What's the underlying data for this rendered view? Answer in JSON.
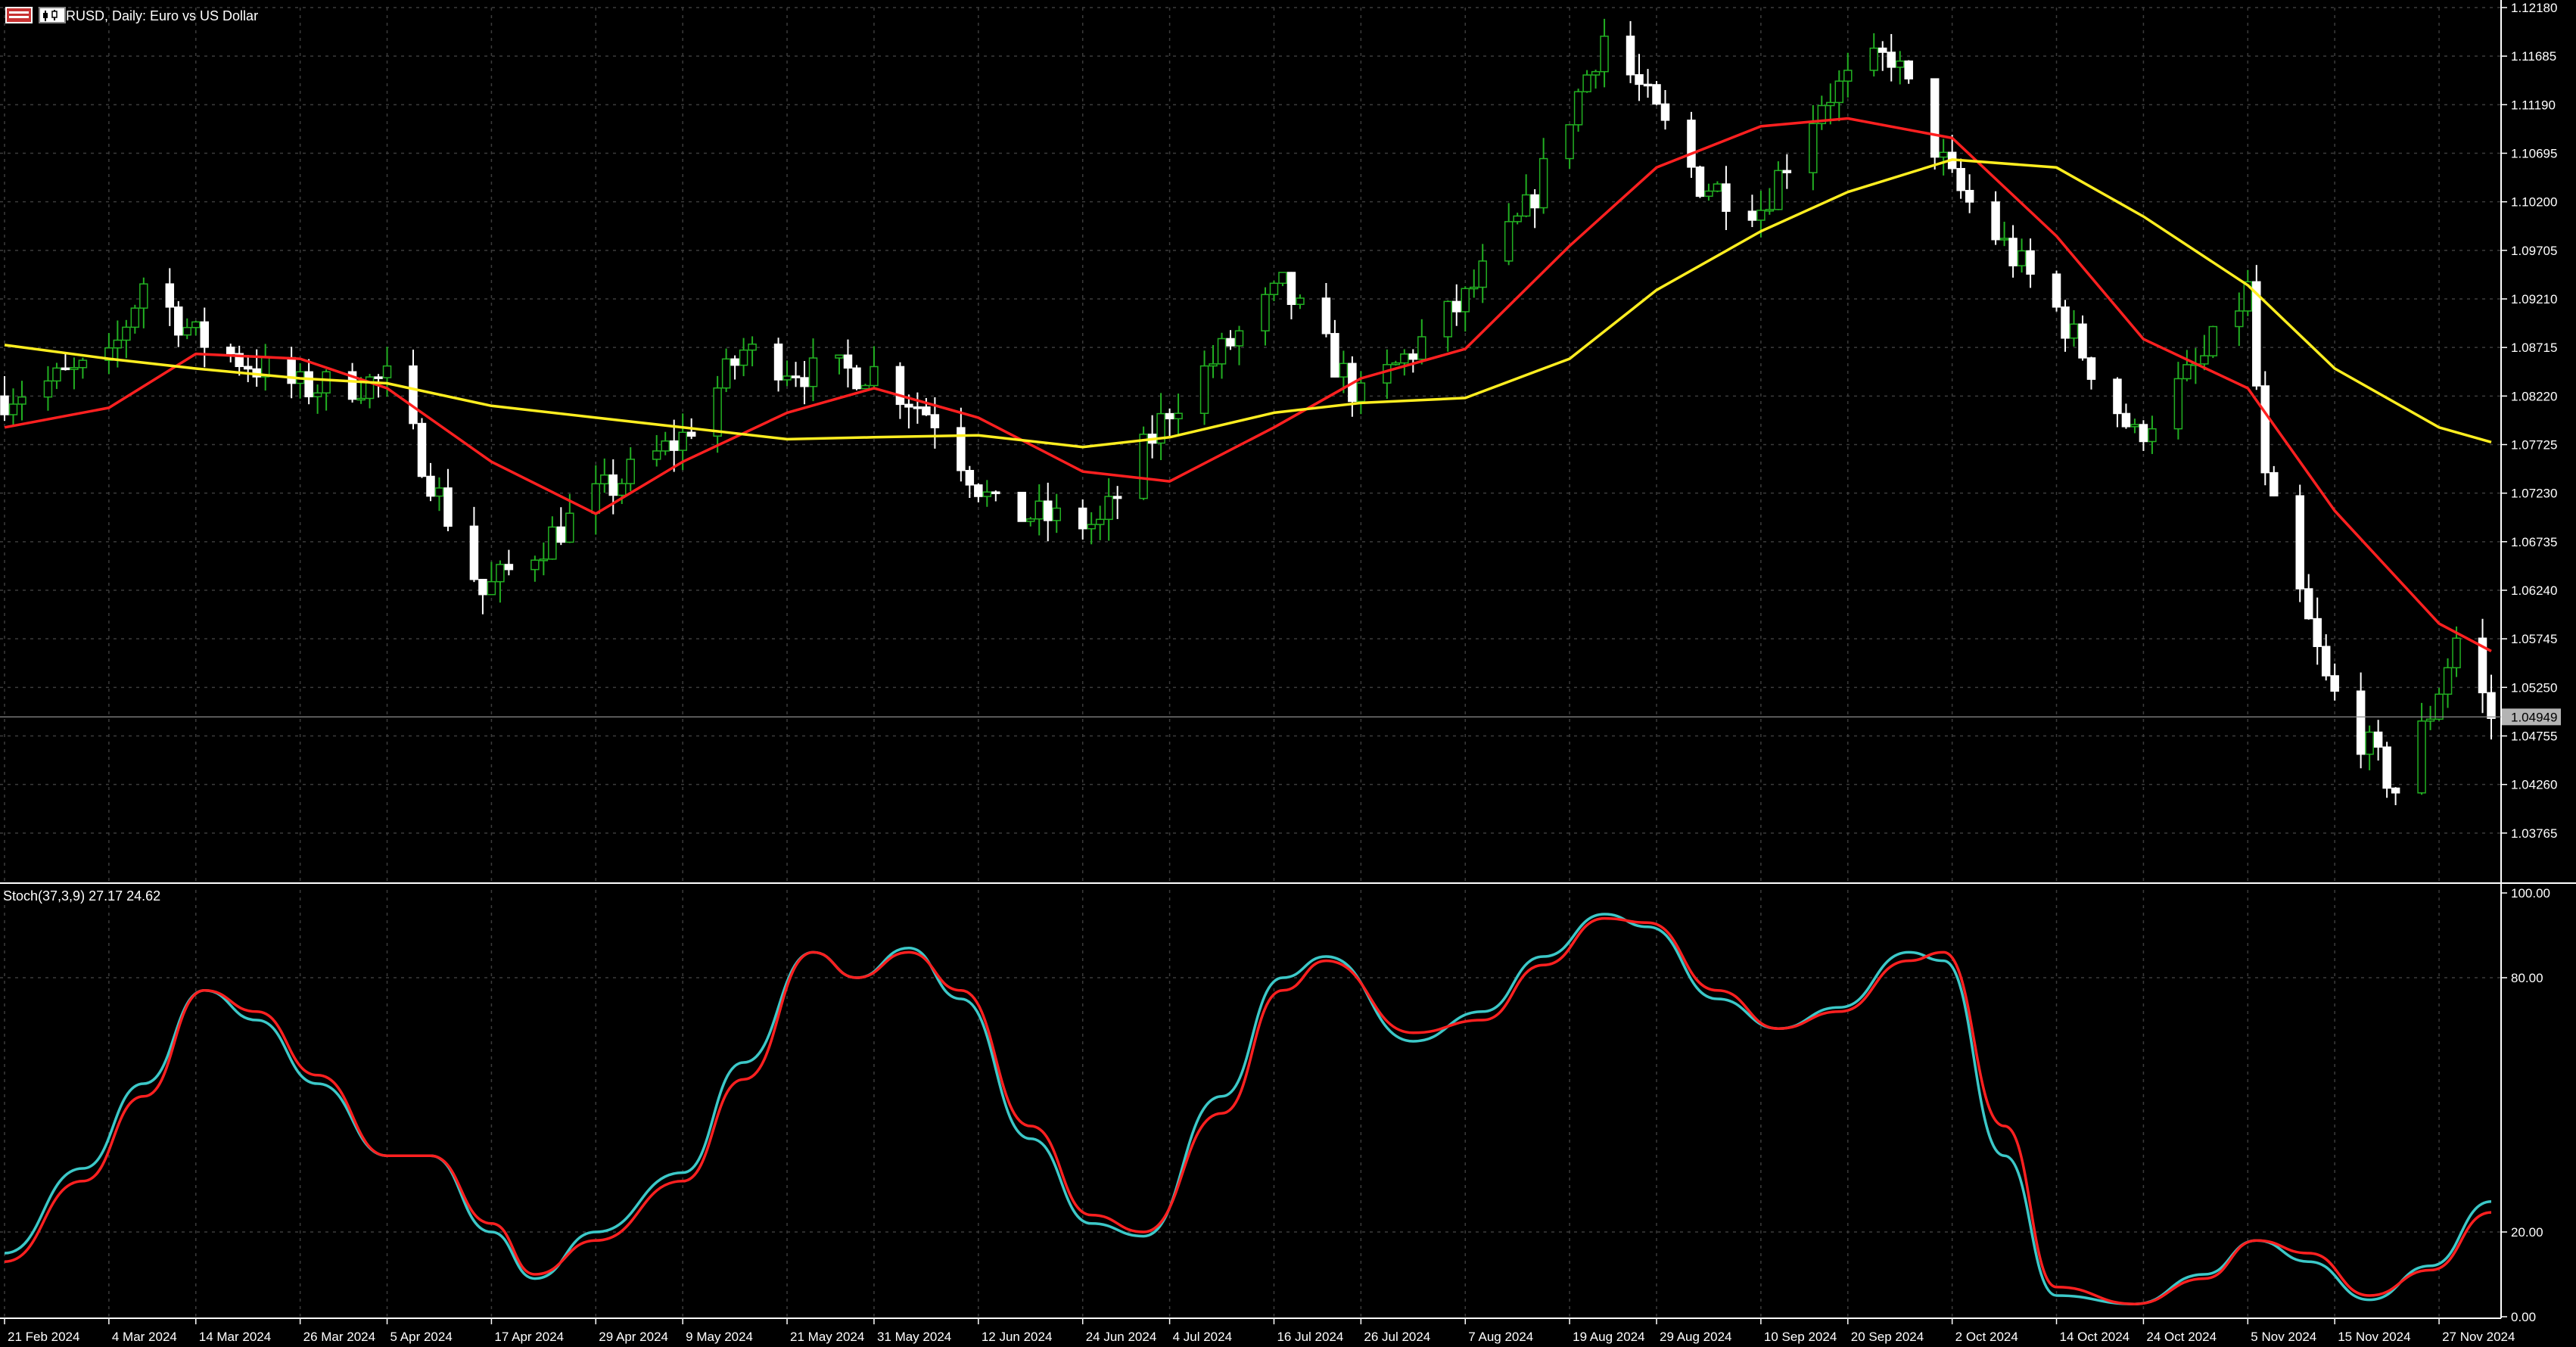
{
  "header": {
    "symbol": "EURUSD",
    "timeframe": "Daily",
    "description": "Euro vs US Dollar",
    "title": "EURUSD, Daily:  Euro vs US Dollar",
    "icons": [
      "chart-window-icon",
      "chart-type-icon"
    ]
  },
  "colors": {
    "background": "#000000",
    "grid": "#3c3c3c",
    "text": "#ffffff",
    "bull_body": "#000000",
    "bull_wick": "#22b022",
    "bear_body": "#ffffff",
    "ma_fast": "#ff2020",
    "ma_slow": "#ffee20",
    "stoch_main": "#3cc8c8",
    "stoch_signal": "#ff2020"
  },
  "price_axis": {
    "ticks": [
      "1.12180",
      "1.11685",
      "1.11190",
      "1.10695",
      "1.10200",
      "1.09705",
      "1.09210",
      "1.08715",
      "1.08220",
      "1.07725",
      "1.07230",
      "1.06735",
      "1.06240",
      "1.05745",
      "1.05250",
      "1.04755",
      "1.04260",
      "1.03765"
    ],
    "current_price": "1.04949"
  },
  "stoch": {
    "label": "Stoch(37,3,9) 27.17 24.62",
    "ticks": [
      "100.00",
      "80.00",
      "20.00",
      "0.00"
    ]
  },
  "time_axis": {
    "labels": [
      "21 Feb 2024",
      "4 Mar 2024",
      "14 Mar 2024",
      "26 Mar 2024",
      "5 Apr 2024",
      "17 Apr 2024",
      "29 Apr 2024",
      "9 May 2024",
      "21 May 2024",
      "31 May 2024",
      "12 Jun 2024",
      "24 Jun 2024",
      "4 Jul 2024",
      "16 Jul 2024",
      "26 Jul 2024",
      "7 Aug 2024",
      "19 Aug 2024",
      "29 Aug 2024",
      "10 Sep 2024",
      "20 Sep 2024",
      "2 Oct 2024",
      "14 Oct 2024",
      "24 Oct 2024",
      "5 Nov 2024",
      "15 Nov 2024",
      "27 Nov 2024"
    ]
  },
  "chart_data": [
    {
      "type": "candlestick",
      "title": "EURUSD, Daily:  Euro vs US Dollar",
      "ylim": [
        1.0327,
        1.1218
      ],
      "current_price": 1.04949,
      "anchors_note": "",
      "close_anchors": [
        {
          "date": "21 Feb 2024",
          "value": 1.0822
        },
        {
          "date": "4 Mar 2024",
          "value": 1.0855
        },
        {
          "date": "8 Mar 2024",
          "value": 1.0939
        },
        {
          "date": "14 Mar 2024",
          "value": 1.0882
        },
        {
          "date": "26 Mar 2024",
          "value": 1.083
        },
        {
          "date": "5 Apr 2024",
          "value": 1.0838
        },
        {
          "date": "16 Apr 2024",
          "value": 1.062
        },
        {
          "date": "29 Apr 2024",
          "value": 1.0718
        },
        {
          "date": "9 May 2024",
          "value": 1.078
        },
        {
          "date": "16 May 2024",
          "value": 1.0868
        },
        {
          "date": "24 May 2024",
          "value": 1.0845
        },
        {
          "date": "31 May 2024",
          "value": 1.0848
        },
        {
          "date": "7 Jun 2024",
          "value": 1.08
        },
        {
          "date": "14 Jun 2024",
          "value": 1.0705
        },
        {
          "date": "26 Jun 2024",
          "value": 1.069
        },
        {
          "date": "4 Jul 2024",
          "value": 1.081
        },
        {
          "date": "17 Jul 2024",
          "value": 1.0932
        },
        {
          "date": "26 Jul 2024",
          "value": 1.0818
        },
        {
          "date": "7 Aug 2024",
          "value": 1.092
        },
        {
          "date": "14 Aug 2024",
          "value": 1.101
        },
        {
          "date": "23 Aug 2024",
          "value": 1.119
        },
        {
          "date": "3 Sep 2024",
          "value": 1.104
        },
        {
          "date": "10 Sep 2024",
          "value": 1.1015
        },
        {
          "date": "17 Sep 2024",
          "value": 1.1125
        },
        {
          "date": "25 Sep 2024",
          "value": 1.117
        },
        {
          "date": "2 Oct 2024",
          "value": 1.104
        },
        {
          "date": "14 Oct 2024",
          "value": 1.091
        },
        {
          "date": "23 Oct 2024",
          "value": 1.078
        },
        {
          "date": "31 Oct 2024",
          "value": 1.086
        },
        {
          "date": "5 Nov 2024",
          "value": 1.093
        },
        {
          "date": "7 Nov 2024",
          "value": 1.0732
        },
        {
          "date": "14 Nov 2024",
          "value": 1.053
        },
        {
          "date": "22 Nov 2024",
          "value": 1.042
        },
        {
          "date": "26 Nov 2024",
          "value": 1.05
        },
        {
          "date": "29 Nov 2024",
          "value": 1.0575
        },
        {
          "date": "3 Dec 2024",
          "value": 1.04949
        }
      ],
      "series": [
        {
          "type": "line",
          "points": [
            {
              "date": "21 Feb 2024",
              "value": 1.079
            },
            {
              "date": "4 Mar 2024",
              "value": 1.081
            },
            {
              "date": "14 Mar 2024",
              "value": 1.0865
            },
            {
              "date": "26 Mar 2024",
              "value": 1.086
            },
            {
              "date": "5 Apr 2024",
              "value": 1.083
            },
            {
              "date": "17 Apr 2024",
              "value": 1.0755
            },
            {
              "date": "29 Apr 2024",
              "value": 1.0702
            },
            {
              "date": "9 May 2024",
              "value": 1.0755
            },
            {
              "date": "21 May 2024",
              "value": 1.0805
            },
            {
              "date": "31 May 2024",
              "value": 1.083
            },
            {
              "date": "12 Jun 2024",
              "value": 1.08
            },
            {
              "date": "24 Jun 2024",
              "value": 1.0745
            },
            {
              "date": "4 Jul 2024",
              "value": 1.0735
            },
            {
              "date": "16 Jul 2024",
              "value": 1.079
            },
            {
              "date": "26 Jul 2024",
              "value": 1.084
            },
            {
              "date": "7 Aug 2024",
              "value": 1.087
            },
            {
              "date": "19 Aug 2024",
              "value": 1.0975
            },
            {
              "date": "29 Aug 2024",
              "value": 1.1055
            },
            {
              "date": "10 Sep 2024",
              "value": 1.1097
            },
            {
              "date": "20 Sep 2024",
              "value": 1.1105
            },
            {
              "date": "2 Oct 2024",
              "value": 1.1085
            },
            {
              "date": "14 Oct 2024",
              "value": 1.0985
            },
            {
              "date": "24 Oct 2024",
              "value": 1.088
            },
            {
              "date": "5 Nov 2024",
              "value": 1.083
            },
            {
              "date": "15 Nov 2024",
              "value": 1.0705
            },
            {
              "date": "27 Nov 2024",
              "value": 1.059
            },
            {
              "date": "3 Dec 2024",
              "value": 1.0562
            }
          ]
        },
        {
          "type": "line",
          "points": [
            {
              "date": "21 Feb 2024",
              "value": 1.0874
            },
            {
              "date": "4 Mar 2024",
              "value": 1.086
            },
            {
              "date": "14 Mar 2024",
              "value": 1.085
            },
            {
              "date": "26 Mar 2024",
              "value": 1.084
            },
            {
              "date": "5 Apr 2024",
              "value": 1.0835
            },
            {
              "date": "17 Apr 2024",
              "value": 1.0812
            },
            {
              "date": "29 Apr 2024",
              "value": 1.08
            },
            {
              "date": "9 May 2024",
              "value": 1.079
            },
            {
              "date": "21 May 2024",
              "value": 1.0778
            },
            {
              "date": "31 May 2024",
              "value": 1.078
            },
            {
              "date": "12 Jun 2024",
              "value": 1.0782
            },
            {
              "date": "24 Jun 2024",
              "value": 1.077
            },
            {
              "date": "4 Jul 2024",
              "value": 1.078
            },
            {
              "date": "16 Jul 2024",
              "value": 1.0805
            },
            {
              "date": "26 Jul 2024",
              "value": 1.0815
            },
            {
              "date": "7 Aug 2024",
              "value": 1.082
            },
            {
              "date": "19 Aug 2024",
              "value": 1.086
            },
            {
              "date": "29 Aug 2024",
              "value": 1.093
            },
            {
              "date": "10 Sep 2024",
              "value": 1.099
            },
            {
              "date": "20 Sep 2024",
              "value": 1.103
            },
            {
              "date": "2 Oct 2024",
              "value": 1.1063
            },
            {
              "date": "14 Oct 2024",
              "value": 1.1055
            },
            {
              "date": "24 Oct 2024",
              "value": 1.1005
            },
            {
              "date": "5 Nov 2024",
              "value": 1.0935
            },
            {
              "date": "15 Nov 2024",
              "value": 1.085
            },
            {
              "date": "27 Nov 2024",
              "value": 1.079
            },
            {
              "date": "3 Dec 2024",
              "value": 1.0775
            }
          ]
        }
      ]
    },
    {
      "type": "line",
      "title": "Stoch(37,3,9) 27.17 24.62",
      "ylim": [
        0,
        100
      ],
      "ticks": [
        100,
        80,
        20,
        0
      ],
      "series": [
        {
          "type": "line",
          "points": [
            {
              "date": "21 Feb 2024",
              "value": 15
            },
            {
              "date": "1 Mar 2024",
              "value": 35
            },
            {
              "date": "8 Mar 2024",
              "value": 55
            },
            {
              "date": "15 Mar 2024",
              "value": 77
            },
            {
              "date": "21 Mar 2024",
              "value": 70
            },
            {
              "date": "28 Mar 2024",
              "value": 55
            },
            {
              "date": "5 Apr 2024",
              "value": 38
            },
            {
              "date": "10 Apr 2024",
              "value": 38
            },
            {
              "date": "17 Apr 2024",
              "value": 20
            },
            {
              "date": "22 Apr 2024",
              "value": 9
            },
            {
              "date": "29 Apr 2024",
              "value": 20
            },
            {
              "date": "9 May 2024",
              "value": 34
            },
            {
              "date": "16 May 2024",
              "value": 60
            },
            {
              "date": "24 May 2024",
              "value": 86
            },
            {
              "date": "29 May 2024",
              "value": 80
            },
            {
              "date": "4 Jun 2024",
              "value": 87
            },
            {
              "date": "10 Jun 2024",
              "value": 75
            },
            {
              "date": "18 Jun 2024",
              "value": 42
            },
            {
              "date": "25 Jun 2024",
              "value": 22
            },
            {
              "date": "1 Jul 2024",
              "value": 19
            },
            {
              "date": "10 Jul 2024",
              "value": 52
            },
            {
              "date": "17 Jul 2024",
              "value": 80
            },
            {
              "date": "22 Jul 2024",
              "value": 85
            },
            {
              "date": "1 Aug 2024",
              "value": 65
            },
            {
              "date": "9 Aug 2024",
              "value": 72
            },
            {
              "date": "16 Aug 2024",
              "value": 85
            },
            {
              "date": "23 Aug 2024",
              "value": 95
            },
            {
              "date": "28 Aug 2024",
              "value": 92
            },
            {
              "date": "5 Sep 2024",
              "value": 75
            },
            {
              "date": "12 Sep 2024",
              "value": 68
            },
            {
              "date": "19 Sep 2024",
              "value": 73
            },
            {
              "date": "27 Sep 2024",
              "value": 86
            },
            {
              "date": "1 Oct 2024",
              "value": 84
            },
            {
              "date": "8 Oct 2024",
              "value": 38
            },
            {
              "date": "14 Oct 2024",
              "value": 5
            },
            {
              "date": "23 Oct 2024",
              "value": 3
            },
            {
              "date": "31 Oct 2024",
              "value": 10
            },
            {
              "date": "6 Nov 2024",
              "value": 18
            },
            {
              "date": "12 Nov 2024",
              "value": 13
            },
            {
              "date": "19 Nov 2024",
              "value": 4
            },
            {
              "date": "26 Nov 2024",
              "value": 12
            },
            {
              "date": "3 Dec 2024",
              "value": 27.17
            }
          ]
        },
        {
          "type": "line",
          "points": [
            {
              "date": "21 Feb 2024",
              "value": 13
            },
            {
              "date": "1 Mar 2024",
              "value": 32
            },
            {
              "date": "8 Mar 2024",
              "value": 52
            },
            {
              "date": "15 Mar 2024",
              "value": 77
            },
            {
              "date": "21 Mar 2024",
              "value": 72
            },
            {
              "date": "28 Mar 2024",
              "value": 57
            },
            {
              "date": "5 Apr 2024",
              "value": 38
            },
            {
              "date": "10 Apr 2024",
              "value": 38
            },
            {
              "date": "17 Apr 2024",
              "value": 22
            },
            {
              "date": "22 Apr 2024",
              "value": 10
            },
            {
              "date": "29 Apr 2024",
              "value": 18
            },
            {
              "date": "9 May 2024",
              "value": 32
            },
            {
              "date": "16 May 2024",
              "value": 56
            },
            {
              "date": "24 May 2024",
              "value": 86
            },
            {
              "date": "29 May 2024",
              "value": 80
            },
            {
              "date": "4 Jun 2024",
              "value": 86
            },
            {
              "date": "10 Jun 2024",
              "value": 77
            },
            {
              "date": "18 Jun 2024",
              "value": 45
            },
            {
              "date": "25 Jun 2024",
              "value": 24
            },
            {
              "date": "1 Jul 2024",
              "value": 20
            },
            {
              "date": "10 Jul 2024",
              "value": 48
            },
            {
              "date": "17 Jul 2024",
              "value": 77
            },
            {
              "date": "22 Jul 2024",
              "value": 84
            },
            {
              "date": "1 Aug 2024",
              "value": 67
            },
            {
              "date": "9 Aug 2024",
              "value": 70
            },
            {
              "date": "16 Aug 2024",
              "value": 83
            },
            {
              "date": "23 Aug 2024",
              "value": 94
            },
            {
              "date": "28 Aug 2024",
              "value": 93
            },
            {
              "date": "5 Sep 2024",
              "value": 77
            },
            {
              "date": "12 Sep 2024",
              "value": 68
            },
            {
              "date": "19 Sep 2024",
              "value": 72
            },
            {
              "date": "27 Sep 2024",
              "value": 84
            },
            {
              "date": "1 Oct 2024",
              "value": 86
            },
            {
              "date": "8 Oct 2024",
              "value": 45
            },
            {
              "date": "14 Oct 2024",
              "value": 7
            },
            {
              "date": "23 Oct 2024",
              "value": 3
            },
            {
              "date": "31 Oct 2024",
              "value": 9
            },
            {
              "date": "6 Nov 2024",
              "value": 18
            },
            {
              "date": "12 Nov 2024",
              "value": 15
            },
            {
              "date": "19 Nov 2024",
              "value": 5
            },
            {
              "date": "26 Nov 2024",
              "value": 11
            },
            {
              "date": "3 Dec 2024",
              "value": 24.62
            }
          ]
        }
      ]
    }
  ]
}
